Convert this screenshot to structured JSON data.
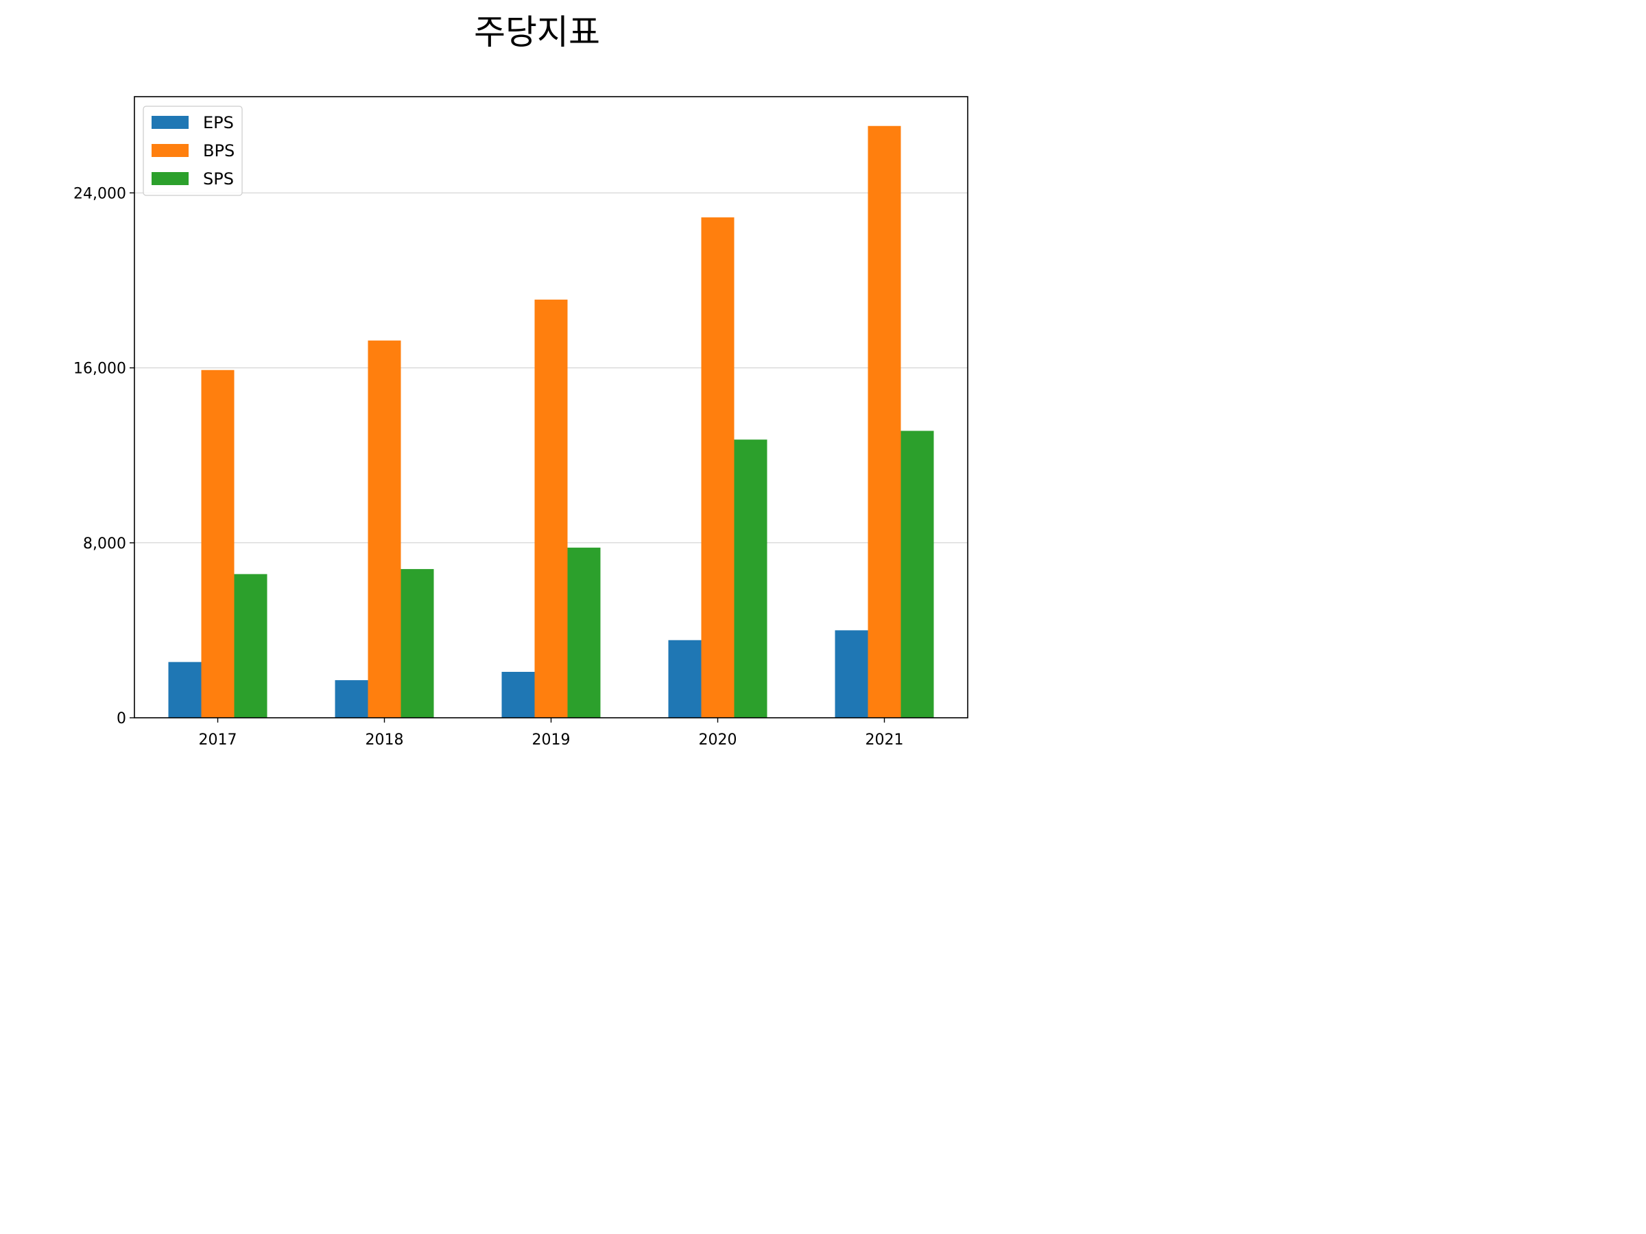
{
  "chart_data": {
    "type": "bar",
    "title": "주당지표",
    "xlabel": "",
    "ylabel": "",
    "categories": [
      "2017",
      "2018",
      "2019",
      "2020",
      "2021"
    ],
    "series": [
      {
        "name": "EPS",
        "color": "#1f77b4",
        "values": [
          2550,
          1720,
          2100,
          3550,
          4000
        ]
      },
      {
        "name": "BPS",
        "color": "#ff7f0e",
        "values": [
          15900,
          17250,
          19120,
          22880,
          27060
        ]
      },
      {
        "name": "SPS",
        "color": "#2ca02c",
        "values": [
          6570,
          6800,
          7780,
          12720,
          13120
        ]
      }
    ],
    "ylim": [
      0,
      28400
    ],
    "yticks": [
      0,
      8000,
      16000,
      24000
    ],
    "ytick_labels": [
      "0",
      "8,000",
      "16,000",
      "24,000"
    ],
    "grid": "y",
    "legend_position": "top-left"
  }
}
